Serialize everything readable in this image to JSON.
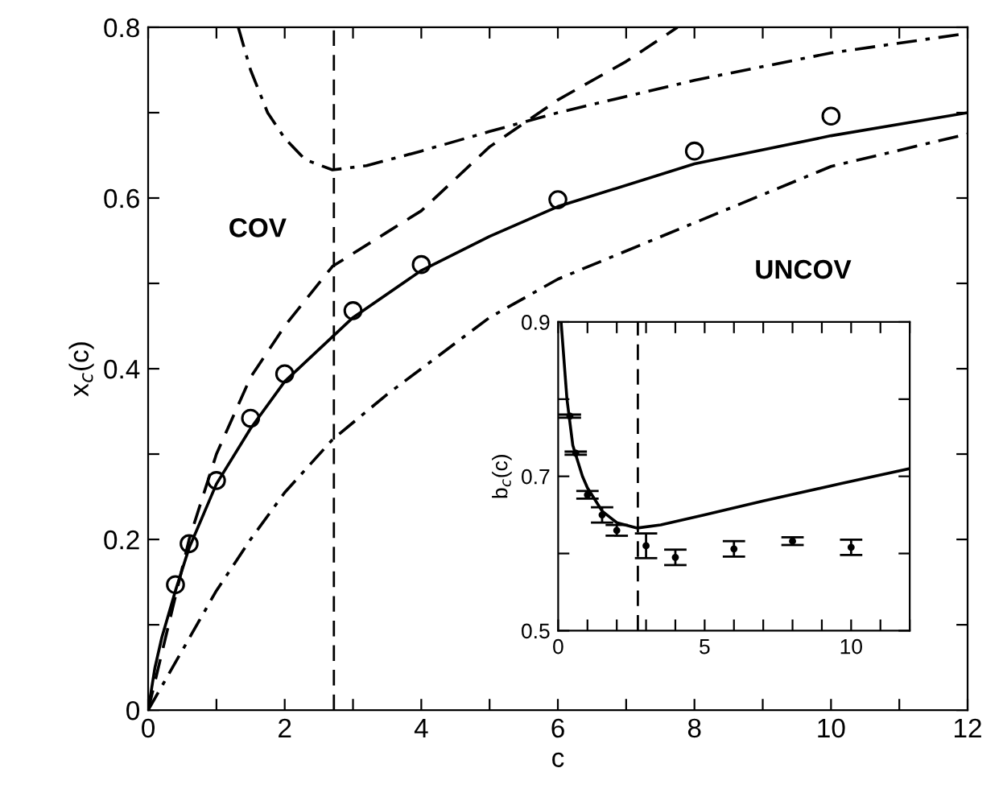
{
  "chart_data": [
    {
      "type": "line",
      "xlabel": "c",
      "ylabel": "x$_{c}$(c)",
      "xlim": [
        0,
        12
      ],
      "ylim": [
        0,
        0.8
      ],
      "xticks": [
        0,
        {
          "value": 1,
          "label": null
        },
        2,
        {
          "value": 3,
          "label": null
        },
        4,
        {
          "value": 5,
          "label": null
        },
        6,
        {
          "value": 7,
          "label": null
        },
        8,
        {
          "value": 9,
          "label": null
        },
        10,
        {
          "value": 11,
          "label": null
        },
        12
      ],
      "yticks": [
        0,
        {
          "value": 0.1,
          "label": null
        },
        0.2,
        {
          "value": 0.3,
          "label": null
        },
        0.4,
        {
          "value": 0.5,
          "label": null
        },
        0.6,
        {
          "value": 0.7,
          "label": null
        },
        0.8
      ],
      "grid": false,
      "legend": false,
      "annotations": [
        "COV",
        "UNCOV"
      ],
      "ref_lines": [
        {
          "axis": "x",
          "value": 2.72,
          "color": "#000000",
          "line_style": "dashed"
        }
      ],
      "series": [
        {
          "type": "scatter",
          "color": "#000000",
          "marker": "circle",
          "x": [
            0.4,
            0.6,
            1,
            1.5,
            2,
            3,
            4,
            6,
            8,
            10
          ],
          "values": [
            0.147,
            0.195,
            0.269,
            0.342,
            0.394,
            0.468,
            0.522,
            0.598,
            0.655,
            0.696
          ]
        },
        {
          "color": "#000000",
          "line_style": "solid",
          "x": [
            0,
            0.1,
            0.2,
            0.4,
            0.6,
            1,
            1.5,
            2,
            3,
            4,
            5,
            6,
            8,
            10,
            12
          ],
          "values": [
            0,
            0.05,
            0.085,
            0.14,
            0.19,
            0.265,
            0.33,
            0.385,
            0.46,
            0.515,
            0.555,
            0.59,
            0.64,
            0.673,
            0.7
          ]
        },
        {
          "color": "#000000",
          "line_style": "dashed",
          "x": [
            0,
            0.3,
            0.6,
            1,
            1.5,
            2,
            2.7,
            3.5,
            4,
            5,
            6,
            7,
            7.75
          ],
          "values": [
            0,
            0.1,
            0.2,
            0.3,
            0.39,
            0.45,
            0.52,
            0.56,
            0.585,
            0.66,
            0.715,
            0.76,
            0.8
          ]
        },
        {
          "color": "#000000",
          "line_style": "dashdot",
          "x": [
            0,
            0.5,
            1,
            1.5,
            2,
            2.7,
            3.5,
            4,
            5,
            6,
            8,
            10,
            12
          ],
          "values": [
            0,
            0.07,
            0.14,
            0.2,
            0.255,
            0.317,
            0.37,
            0.4,
            0.46,
            0.505,
            0.571,
            0.637,
            0.675
          ]
        },
        {
          "color": "#000000",
          "line_style": "dashdot",
          "x": [
            1.32,
            1.5,
            1.75,
            2,
            2.3,
            2.7,
            3.2,
            4,
            5,
            6,
            8,
            10,
            12
          ],
          "values": [
            0.8,
            0.75,
            0.7,
            0.67,
            0.645,
            0.633,
            0.638,
            0.655,
            0.678,
            0.7,
            0.738,
            0.77,
            0.793
          ]
        }
      ]
    },
    {
      "type": "line",
      "ylabel": "b$_{c}$(c)",
      "xlim": [
        0,
        12
      ],
      "ylim": [
        0.5,
        0.9
      ],
      "xticks": [
        0,
        {
          "value": 1,
          "label": null
        },
        {
          "value": 2,
          "label": null
        },
        {
          "value": 3,
          "label": null
        },
        {
          "value": 4,
          "label": null
        },
        5,
        {
          "value": 6,
          "label": null
        },
        {
          "value": 7,
          "label": null
        },
        {
          "value": 8,
          "label": null
        },
        {
          "value": 9,
          "label": null
        },
        10,
        {
          "value": 11,
          "label": null
        },
        {
          "value": 12,
          "label": null
        }
      ],
      "yticks": [
        0.5,
        {
          "value": 0.6,
          "label": null
        },
        0.7,
        {
          "value": 0.8,
          "label": null
        },
        0.9
      ],
      "grid": false,
      "legend": false,
      "ref_lines": [
        {
          "axis": "x",
          "value": 2.72,
          "color": "#000000",
          "line_style": "dashed"
        }
      ],
      "series": [
        {
          "color": "#000000",
          "line_style": "solid",
          "x": [
            0.1,
            0.3,
            0.5,
            0.83,
            1,
            1.5,
            2,
            2.7,
            3.5,
            5,
            7,
            9.7,
            12
          ],
          "values": [
            0.9,
            0.8,
            0.74,
            0.7,
            0.685,
            0.655,
            0.64,
            0.633,
            0.637,
            0.65,
            0.668,
            0.691,
            0.71
          ]
        },
        {
          "type": "scatter",
          "color": "#000000",
          "x": [
            0.4,
            0.6,
            1,
            1.5,
            2,
            3,
            4,
            6,
            8,
            10
          ],
          "values": [
            0.778,
            0.73,
            0.676,
            0.65,
            0.63,
            0.61,
            0.595,
            0.606,
            0.616,
            0.608
          ],
          "errors": [
            0.002,
            0.002,
            0.005,
            0.01,
            0.007,
            0.016,
            0.01,
            0.01,
            0.005,
            0.01
          ]
        }
      ]
    }
  ]
}
